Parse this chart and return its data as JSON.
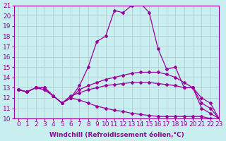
{
  "xlabel": "Windchill (Refroidissement éolien,°C)",
  "bg_color": "#c8eef0",
  "line_color": "#990099",
  "xlim": [
    -0.5,
    23
  ],
  "ylim": [
    10,
    21
  ],
  "xticks": [
    0,
    1,
    2,
    3,
    4,
    5,
    6,
    7,
    8,
    9,
    10,
    11,
    12,
    13,
    14,
    15,
    16,
    17,
    18,
    19,
    20,
    21,
    22,
    23
  ],
  "yticks": [
    10,
    11,
    12,
    13,
    14,
    15,
    16,
    17,
    18,
    19,
    20,
    21
  ],
  "series": [
    {
      "x": [
        0,
        1,
        2,
        3,
        4,
        5,
        6,
        7,
        8,
        9,
        10,
        11,
        12,
        13,
        14,
        15,
        16,
        17,
        18,
        19,
        20,
        21,
        22,
        23
      ],
      "y": [
        12.8,
        12.6,
        13.0,
        13.0,
        12.2,
        11.5,
        12.0,
        13.2,
        15.0,
        17.5,
        18.0,
        20.5,
        20.3,
        21.0,
        21.2,
        20.3,
        16.8,
        14.8,
        15.0,
        13.0,
        13.0,
        11.0,
        10.5,
        10.0
      ]
    },
    {
      "x": [
        0,
        1,
        2,
        3,
        4,
        5,
        6,
        7,
        8,
        9,
        10,
        11,
        12,
        13,
        14,
        15,
        16,
        17,
        18,
        19,
        20,
        21,
        22,
        23
      ],
      "y": [
        12.8,
        12.6,
        13.0,
        13.0,
        12.2,
        11.5,
        12.0,
        12.8,
        13.2,
        13.5,
        13.8,
        14.0,
        14.2,
        14.4,
        14.5,
        14.5,
        14.5,
        14.3,
        14.0,
        13.5,
        13.0,
        12.0,
        11.5,
        10.0
      ]
    },
    {
      "x": [
        0,
        1,
        2,
        3,
        4,
        5,
        6,
        7,
        8,
        9,
        10,
        11,
        12,
        13,
        14,
        15,
        16,
        17,
        18,
        19,
        20,
        21,
        22,
        23
      ],
      "y": [
        12.8,
        12.6,
        13.0,
        12.8,
        12.2,
        11.5,
        12.2,
        12.5,
        12.8,
        13.0,
        13.2,
        13.3,
        13.4,
        13.5,
        13.5,
        13.5,
        13.4,
        13.3,
        13.2,
        13.0,
        13.0,
        11.5,
        11.0,
        10.0
      ]
    },
    {
      "x": [
        0,
        1,
        2,
        3,
        4,
        5,
        6,
        7,
        8,
        9,
        10,
        11,
        12,
        13,
        14,
        15,
        16,
        17,
        18,
        19,
        20,
        21,
        22,
        23
      ],
      "y": [
        12.8,
        12.6,
        13.0,
        12.8,
        12.2,
        11.5,
        12.0,
        11.8,
        11.5,
        11.2,
        11.0,
        10.8,
        10.7,
        10.5,
        10.4,
        10.3,
        10.2,
        10.2,
        10.2,
        10.2,
        10.2,
        10.2,
        10.0,
        9.8
      ]
    }
  ],
  "font_size_xlabel": 6.5,
  "font_size_tick": 6.5,
  "grid_color": "#b0c8cc",
  "marker": "D",
  "markersize": 2.0,
  "linewidth": 0.9
}
